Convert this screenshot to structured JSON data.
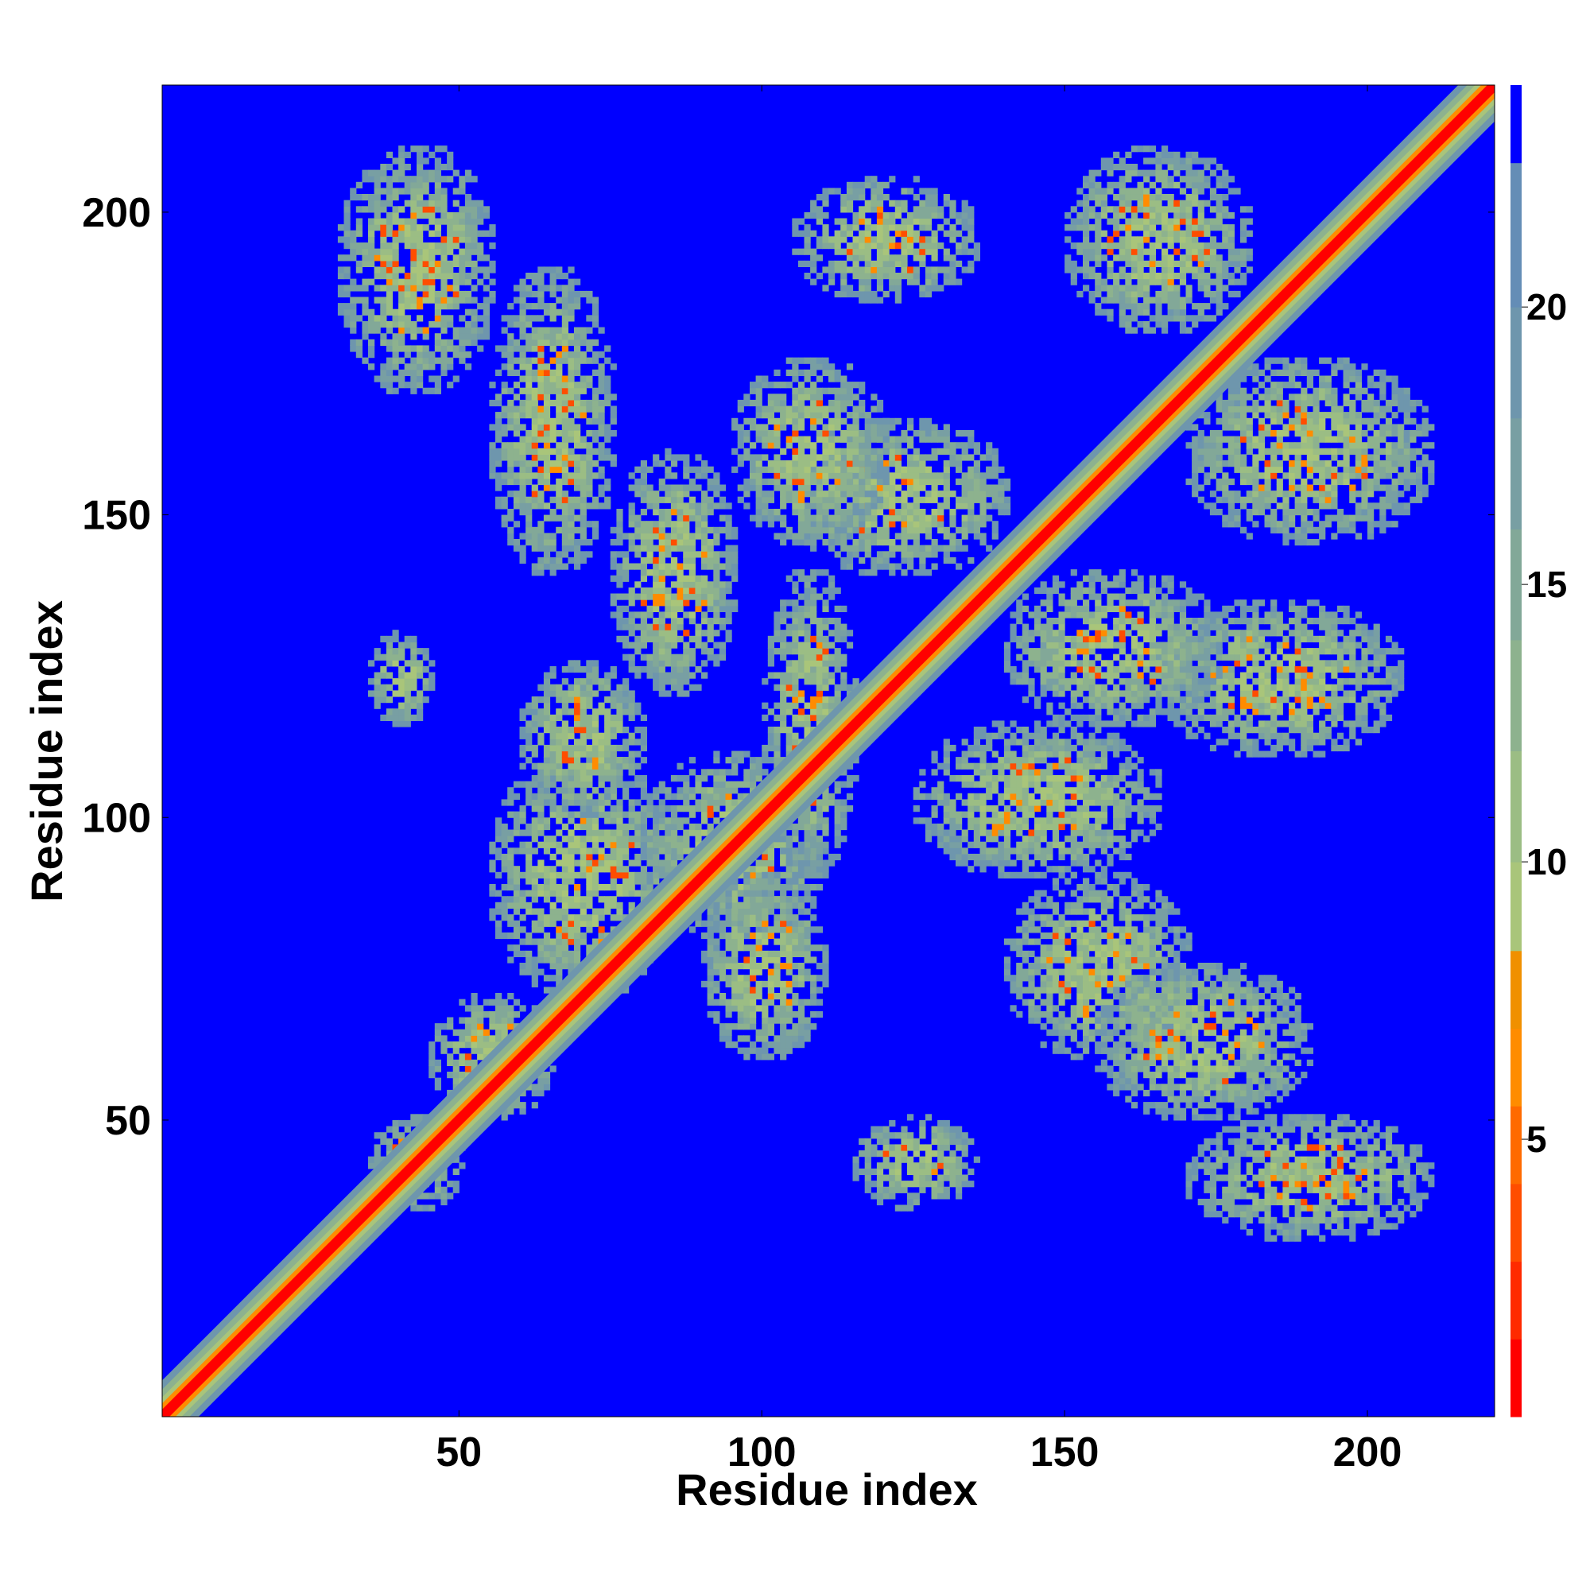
{
  "chart_data": {
    "type": "heatmap",
    "title": "",
    "xlabel": "Residue index",
    "ylabel": "Residue index",
    "xlim": [
      1,
      221
    ],
    "ylim": [
      1,
      221
    ],
    "xticks": [
      50,
      100,
      150,
      200
    ],
    "yticks": [
      50,
      100,
      150,
      200
    ],
    "colorbar": {
      "range": [
        0,
        24
      ],
      "ticks": [
        5,
        10,
        15,
        20
      ],
      "levels": [
        {
          "min": 0,
          "max": 1.4,
          "color": "#ff0000"
        },
        {
          "min": 1.4,
          "max": 2.8,
          "color": "#ff2a00"
        },
        {
          "min": 2.8,
          "max": 4.2,
          "color": "#ff4d00"
        },
        {
          "min": 4.2,
          "max": 5.6,
          "color": "#ff6a00"
        },
        {
          "min": 5.6,
          "max": 7.0,
          "color": "#ff8c00"
        },
        {
          "min": 7.0,
          "max": 8.4,
          "color": "#f09000"
        },
        {
          "min": 8.4,
          "max": 10.0,
          "color": "#a9c57a"
        },
        {
          "min": 10.0,
          "max": 12.0,
          "color": "#9bbd84"
        },
        {
          "min": 12.0,
          "max": 14.0,
          "color": "#8db28e"
        },
        {
          "min": 14.0,
          "max": 16.0,
          "color": "#82a898"
        },
        {
          "min": 16.0,
          "max": 18.0,
          "color": "#789fa3"
        },
        {
          "min": 18.0,
          "max": 20.0,
          "color": "#6e96ad"
        },
        {
          "min": 20.0,
          "max": 22.6,
          "color": "#648db6"
        },
        {
          "min": 22.6,
          "max": 24.0,
          "color": "#0000ff"
        }
      ]
    },
    "background_color": "#0000ff",
    "contact_regions": [
      {
        "x": [
          30,
          55
        ],
        "y": [
          170,
          210
        ]
      },
      {
        "x": [
          55,
          75
        ],
        "y": [
          140,
          190
        ]
      },
      {
        "x": [
          75,
          95
        ],
        "y": [
          120,
          160
        ]
      },
      {
        "x": [
          105,
          135
        ],
        "y": [
          185,
          205
        ]
      },
      {
        "x": [
          105,
          140
        ],
        "y": [
          140,
          165
        ]
      },
      {
        "x": [
          150,
          180
        ],
        "y": [
          180,
          210
        ]
      },
      {
        "x": [
          170,
          210
        ],
        "y": [
          145,
          175
        ]
      },
      {
        "x": [
          165,
          205
        ],
        "y": [
          110,
          135
        ]
      },
      {
        "x": [
          140,
          175
        ],
        "y": [
          115,
          140
        ]
      },
      {
        "x": [
          125,
          165
        ],
        "y": [
          90,
          115
        ]
      },
      {
        "x": [
          140,
          170
        ],
        "y": [
          60,
          90
        ]
      },
      {
        "x": [
          155,
          190
        ],
        "y": [
          50,
          75
        ]
      },
      {
        "x": [
          170,
          210
        ],
        "y": [
          30,
          50
        ]
      },
      {
        "x": [
          115,
          135
        ],
        "y": [
          35,
          50
        ]
      },
      {
        "x": [
          55,
          85
        ],
        "y": [
          70,
          110
        ]
      },
      {
        "x": [
          45,
          65
        ],
        "y": [
          50,
          70
        ]
      },
      {
        "x": [
          35,
          50
        ],
        "y": [
          35,
          50
        ]
      },
      {
        "x": [
          80,
          110
        ],
        "y": [
          80,
          110
        ]
      },
      {
        "x": [
          35,
          45
        ],
        "y": [
          115,
          130
        ]
      },
      {
        "x": [
          60,
          80
        ],
        "y": [
          100,
          125
        ]
      },
      {
        "x": [
          90,
          110
        ],
        "y": [
          60,
          90
        ]
      },
      {
        "x": [
          100,
          115
        ],
        "y": [
          90,
          140
        ]
      },
      {
        "x": [
          95,
          120
        ],
        "y": [
          145,
          175
        ]
      }
    ]
  }
}
